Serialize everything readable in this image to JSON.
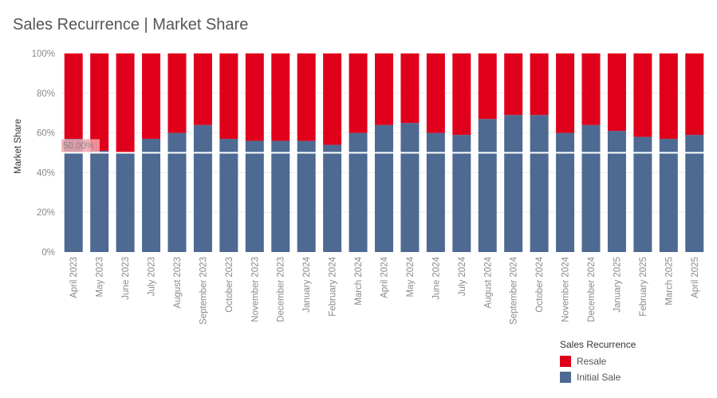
{
  "chart_data": {
    "type": "bar",
    "stacked": true,
    "normalized": true,
    "title": "Sales Recurrence | Market Share",
    "ylabel": "Market Share",
    "xlabel": "",
    "ylim": [
      0,
      100
    ],
    "y_ticks": [
      "0%",
      "20%",
      "40%",
      "60%",
      "80%",
      "100%"
    ],
    "categories": [
      "April 2023",
      "May 2023",
      "June 2023",
      "July 2023",
      "August 2023",
      "September 2023",
      "October 2023",
      "November 2023",
      "December 2023",
      "January 2024",
      "February 2024",
      "March 2024",
      "April 2024",
      "May 2024",
      "June 2024",
      "July 2024",
      "August 2024",
      "September 2024",
      "October 2024",
      "November 2024",
      "December 2024",
      "January 2025",
      "February 2025",
      "March 2025",
      "April 2025"
    ],
    "series": [
      {
        "name": "Initial Sale",
        "color": "#4e6a92",
        "values": [
          57,
          51,
          50,
          57,
          60,
          64,
          57,
          56,
          56,
          56,
          54,
          60,
          64,
          65,
          60,
          59,
          67,
          69,
          69,
          60,
          64,
          61,
          58,
          57,
          59
        ]
      },
      {
        "name": "Resale",
        "color": "#e0001b",
        "values": [
          43,
          49,
          50,
          43,
          40,
          36,
          43,
          44,
          44,
          44,
          46,
          40,
          36,
          35,
          40,
          41,
          33,
          31,
          31,
          40,
          36,
          39,
          42,
          43,
          41
        ]
      }
    ],
    "reference_line": {
      "value": 50,
      "label": "50.00%"
    },
    "legend": {
      "title": "Sales Recurrence",
      "placement": "bottom-right",
      "items": [
        "Resale",
        "Initial Sale"
      ]
    },
    "grid": true
  },
  "colors": {
    "resale": "#e0001b",
    "initial_sale": "#4e6a92"
  }
}
